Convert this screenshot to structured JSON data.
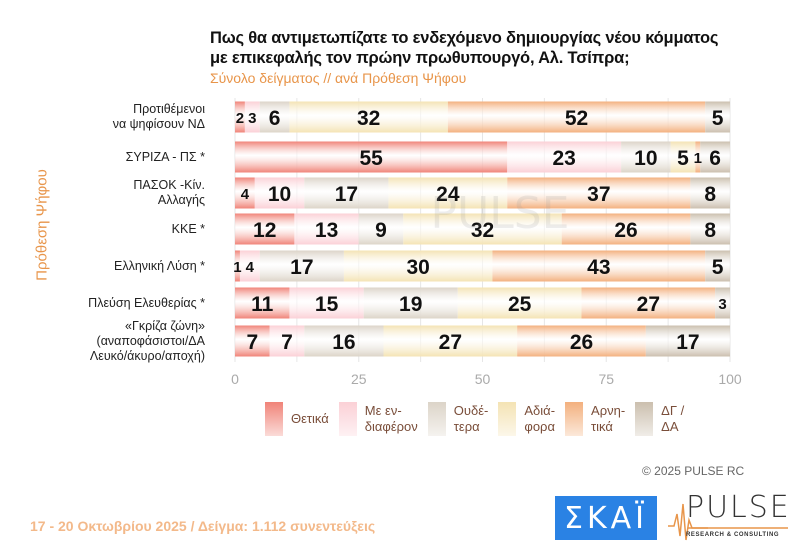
{
  "header": {
    "title_line1": "Πως θα αντιμετωπίζατε το ενδεχόμενο δημιουργίας νέου κόμματος",
    "title_line2": "με επικεφαλής τον πρώην πρωθυπουργό, Αλ. Τσίπρα;",
    "subtitle": "Σύνολο δείγματος // ανά Πρόθεση Ψήφου"
  },
  "colors": {
    "positive": "#f08378",
    "interested": "#fbd0d6",
    "neutral": "#dcd4c8",
    "indifferent": "#f4e3b4",
    "negative": "#f3b07e",
    "dk_na": "#cbbfae",
    "accent": "#e8954a"
  },
  "chart_data": {
    "type": "bar",
    "orientation": "horizontal-stacked",
    "title": "Πως θα αντιμετωπίζατε το ενδεχόμενο δημιουργίας νέου κόμματος με επικεφαλής τον πρώην πρωθυπουργό, Αλ. Τσίπρα;",
    "subtitle": "Σύνολο δείγματος // ανά Πρόθεση Ψήφου",
    "ylabel": "Πρόθεση Ψήφου",
    "xlabel": "",
    "xlim": [
      0,
      100
    ],
    "xticks": [
      "0",
      "25",
      "50",
      "75",
      "100"
    ],
    "grid": true,
    "legend_position": "bottom",
    "categories": [
      [
        "Προτιθέμενοι",
        "να ψηφίσουν ΝΔ"
      ],
      [
        "ΣΥΡΙΖΑ - ΠΣ *"
      ],
      [
        "ΠΑΣΟΚ -Κίν.",
        "Αλλαγής"
      ],
      [
        "ΚΚΕ *"
      ],
      [
        "Ελληνική Λύση *"
      ],
      [
        "Πλεύση Ελευθερίας *"
      ],
      [
        "«Γκρίζα ζώνη»",
        "(αναποφάσιστοι/ΔΑ",
        "Λευκό/άκυρο/αποχή)"
      ]
    ],
    "series": [
      {
        "name": "Θετικά",
        "legend": [
          "Θετικά"
        ],
        "color_key": "positive",
        "values": [
          2,
          55,
          4,
          12,
          1,
          11,
          7
        ]
      },
      {
        "name": "Με ενδιαφέρον",
        "legend": [
          "Με εν-",
          "διαφέρον"
        ],
        "color_key": "interested",
        "values": [
          3,
          23,
          10,
          13,
          4,
          15,
          7
        ]
      },
      {
        "name": "Ουδέτερα",
        "legend": [
          "Ουδέ-",
          "τερα"
        ],
        "color_key": "neutral",
        "values": [
          6,
          10,
          17,
          9,
          17,
          19,
          16
        ]
      },
      {
        "name": "Αδιάφορα",
        "legend": [
          "Αδιά-",
          "φορα"
        ],
        "color_key": "indifferent",
        "values": [
          32,
          5,
          24,
          32,
          30,
          25,
          27
        ]
      },
      {
        "name": "Αρνητικά",
        "legend": [
          "Αρνη-",
          "τικά"
        ],
        "color_key": "negative",
        "values": [
          52,
          1,
          37,
          26,
          43,
          27,
          26
        ]
      },
      {
        "name": "ΔΓ / ΔΑ",
        "legend": [
          "ΔΓ /",
          "ΔΑ"
        ],
        "color_key": "dk_na",
        "values": [
          5,
          6,
          8,
          8,
          5,
          3,
          17
        ]
      }
    ]
  },
  "footer": {
    "copyright": "©  2025  PULSE RC",
    "fieldwork": "17 - 20 Οκτωβρίου 2025  /  Δείγμα:  1.112 συνεντεύξεις",
    "logo_skai": "ΣΚΑΪ",
    "logo_pulse": "PULSE",
    "logo_pulse_sub": "RESEARCH & CONSULTING"
  },
  "watermark": "PULSE"
}
